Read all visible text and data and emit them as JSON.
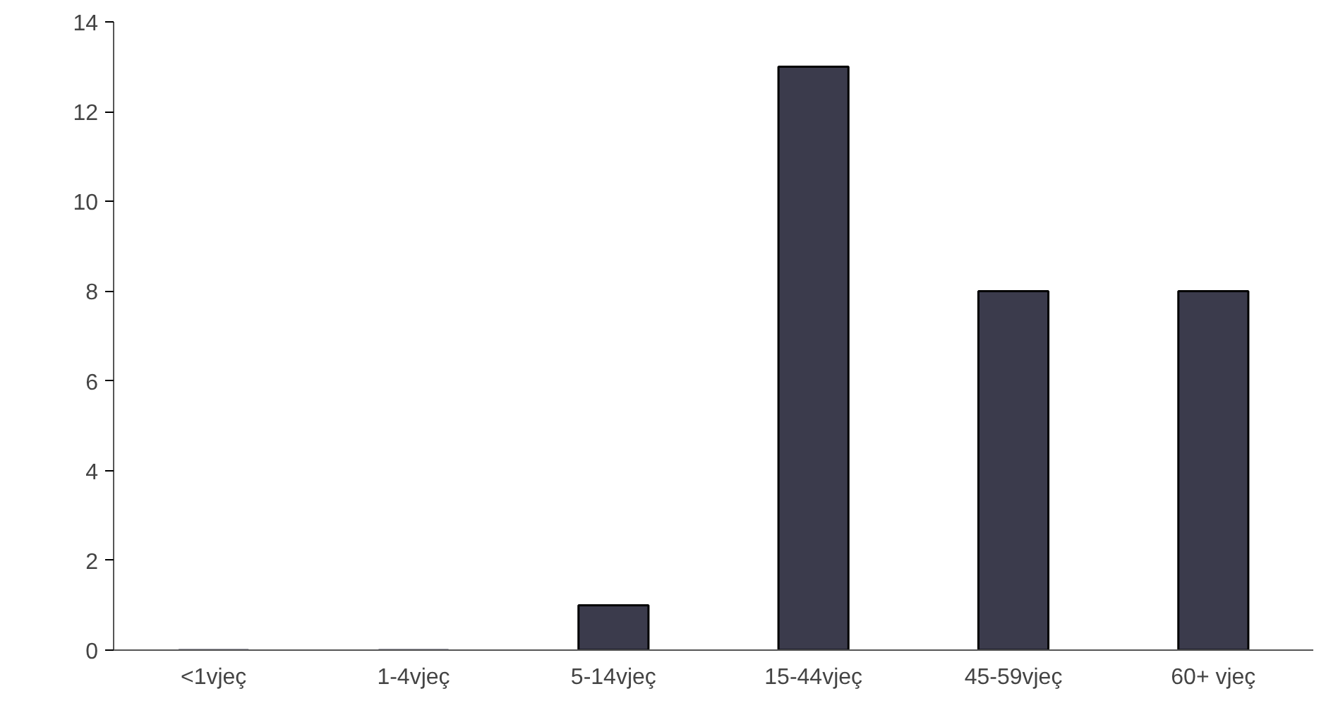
{
  "chart_data": {
    "type": "bar",
    "categories": [
      "<1vjeç",
      "1-4vjeç",
      "5-14vjeç",
      "15-44vjeç",
      "45-59vjeç",
      "60+ vjeç"
    ],
    "values": [
      0,
      0,
      1,
      13,
      8,
      8
    ],
    "color": "#3b3b4c",
    "ylim": [
      0,
      14
    ],
    "yticks": [
      0,
      2,
      4,
      6,
      8,
      10,
      12,
      14
    ],
    "grid": false
  }
}
